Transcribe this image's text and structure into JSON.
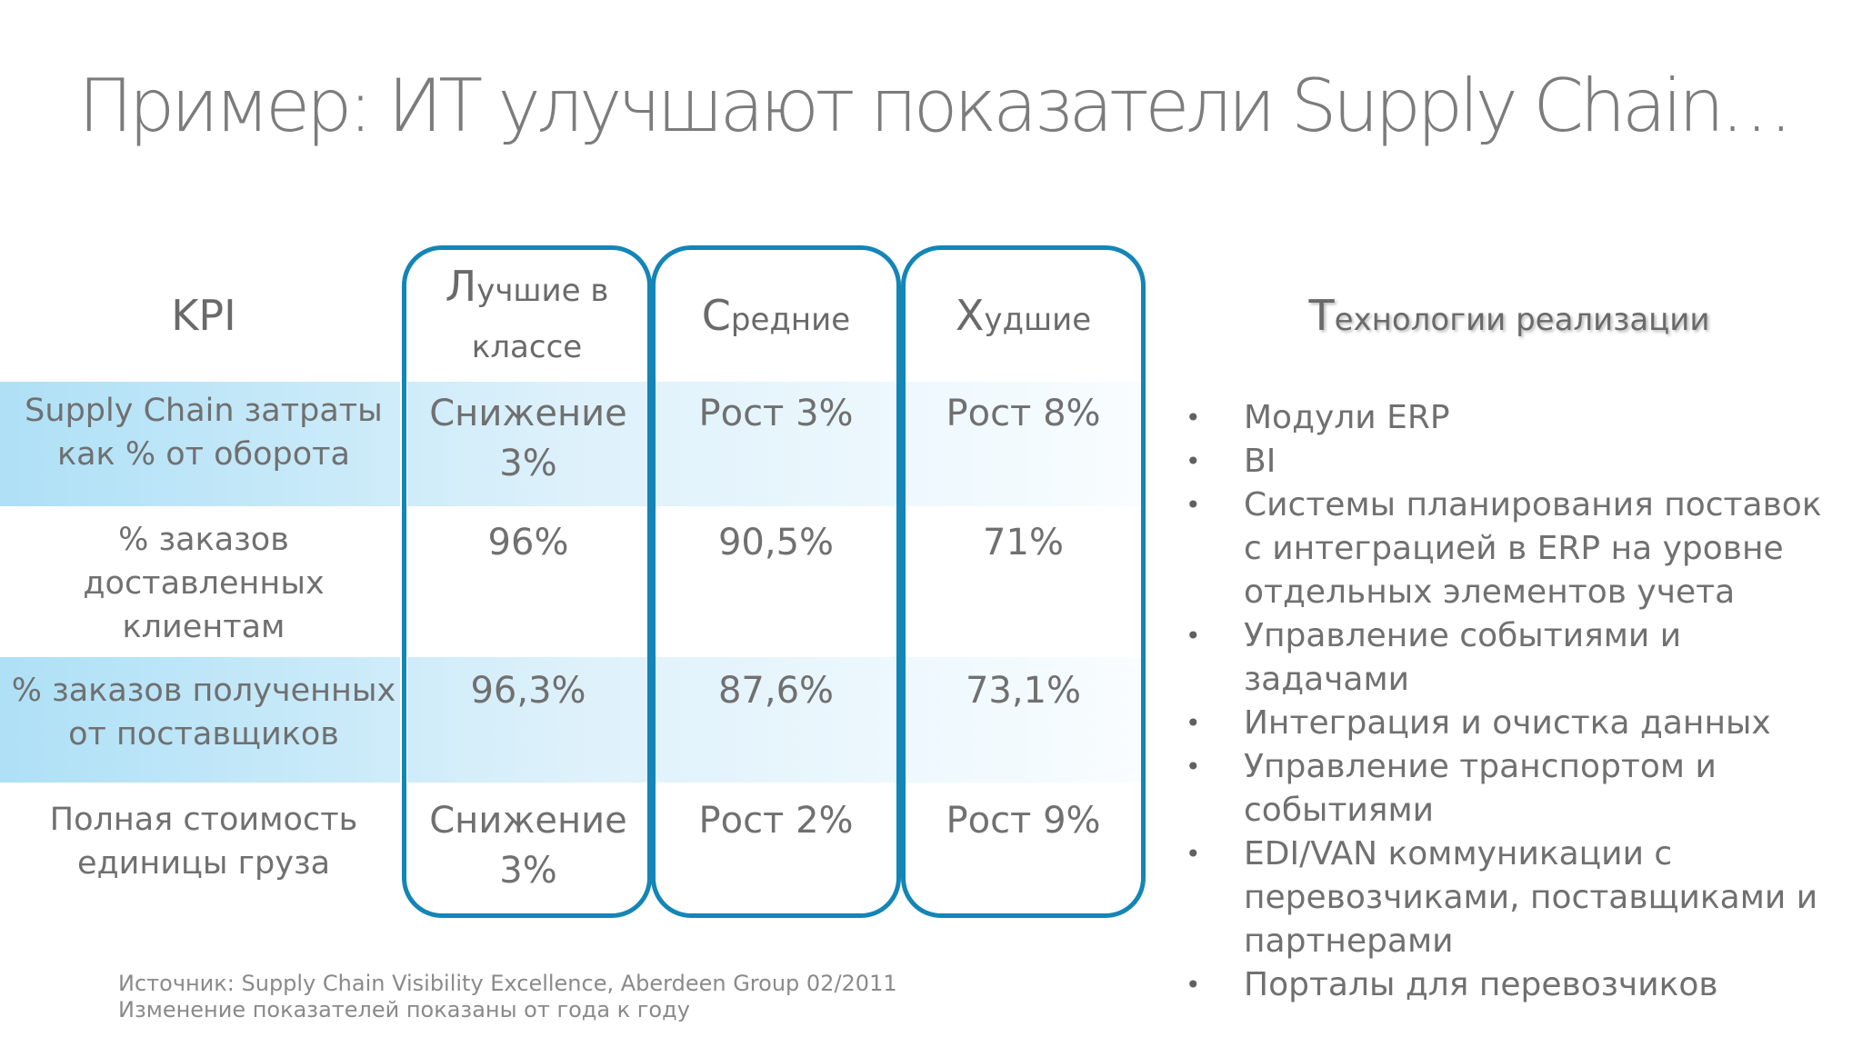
{
  "slide": {
    "title": "Пример: ИТ улучшают показатели Supply Chain…"
  },
  "table": {
    "kpi_header": "KPI",
    "col_headers": [
      {
        "first": "Л",
        "rest": "учшие в",
        "line2": "классе"
      },
      {
        "first": "С",
        "rest": "редние"
      },
      {
        "first": "Х",
        "rest": "удшие"
      }
    ],
    "rows": [
      {
        "kpi": "Supply Chain затраты как % от оборота",
        "best": "Снижение 3%",
        "avg": "Рост 3%",
        "worst": "Рост 8%"
      },
      {
        "kpi": "% заказов доставленных клиентам",
        "best": "96%",
        "avg": "90,5%",
        "worst": "71%"
      },
      {
        "kpi": "% заказов полученных от поставщиков",
        "best": "96,3%",
        "avg": "87,6%",
        "worst": "73,1%"
      },
      {
        "kpi": "Полная стоимость единицы груза",
        "best": "Снижение 3%",
        "avg": "Рост 2%",
        "worst": "Рост 9%"
      }
    ]
  },
  "technologies": {
    "heading_first": "Т",
    "heading_rest": "ехнологии реализации",
    "bullet_glyph": "•",
    "items": [
      "Модули ERP",
      "BI",
      "Системы планирования поставок с интеграцией в ERP на уровне отдельных элементов учета",
      "Управление событиями и задачами",
      "Интеграция и очистка данных",
      "Управление транспортом и событиями",
      "EDI/VAN коммуникации с перевозчиками, поставщиками и партнерами",
      "Порталы для перевозчиков"
    ]
  },
  "footer": {
    "source": "Источник: Supply Chain Visibility Excellence, Aberdeen Group 02/2011",
    "note": "Изменение показателей показаны от года к году"
  },
  "colors": {
    "accent_border": "#1485b7",
    "band_start": "#aee0f6",
    "text": "#707070"
  }
}
